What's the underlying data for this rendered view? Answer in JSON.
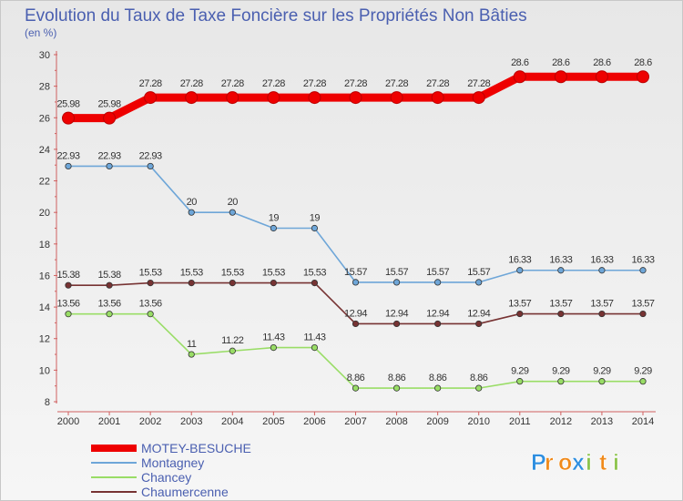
{
  "chart_data": {
    "type": "line",
    "title": "Evolution du Taux de Taxe Foncière sur les Propriétés Non Bâties",
    "ylabel": "(en %)",
    "xlabel": "",
    "ylim": [
      8,
      30
    ],
    "yticks": [
      "8",
      "10",
      "12",
      "14",
      "16",
      "18",
      "20",
      "22",
      "24",
      "26",
      "28",
      "30"
    ],
    "categories": [
      "2000",
      "2001",
      "2002",
      "2003",
      "2004",
      "2005",
      "2006",
      "2007",
      "2008",
      "2009",
      "2010",
      "2011",
      "2012",
      "2013",
      "2014"
    ],
    "series": [
      {
        "name": "MOTEY-BESUCHE",
        "color": "#ee0000",
        "values": [
          25.98,
          25.98,
          27.28,
          27.28,
          27.28,
          27.28,
          27.28,
          27.28,
          27.28,
          27.28,
          27.28,
          28.6,
          28.6,
          28.6,
          28.6
        ],
        "labels": [
          "25.98",
          "25.98",
          "27.28",
          "27.28",
          "27.28",
          "27.28",
          "27.28",
          "27.28",
          "27.28",
          "27.28",
          "27.28",
          "28.6",
          "28.6",
          "28.6",
          "28.6"
        ]
      },
      {
        "name": "Montagney",
        "color": "#6ea6d8",
        "values": [
          22.93,
          22.93,
          22.93,
          20,
          20,
          19,
          19,
          15.57,
          15.57,
          15.57,
          15.57,
          16.33,
          16.33,
          16.33,
          16.33
        ],
        "labels": [
          "22.93",
          "22.93",
          "22.93",
          "20",
          "20",
          "19",
          "19",
          "15.57",
          "15.57",
          "15.57",
          "15.57",
          "16.33",
          "16.33",
          "16.33",
          "16.33"
        ]
      },
      {
        "name": "Chancey",
        "color": "#99dd66",
        "values": [
          13.56,
          13.56,
          13.56,
          11,
          11.22,
          11.43,
          11.43,
          8.86,
          8.86,
          8.86,
          8.86,
          9.29,
          9.29,
          9.29,
          9.29
        ],
        "labels": [
          "13.56",
          "13.56",
          "13.56",
          "11",
          "11.22",
          "11.43",
          "11.43",
          "8.86",
          "8.86",
          "8.86",
          "8.86",
          "9.29",
          "9.29",
          "9.29",
          "9.29"
        ]
      },
      {
        "name": "Chaumercenne",
        "color": "#773333",
        "values": [
          15.38,
          15.38,
          15.53,
          15.53,
          15.53,
          15.53,
          15.53,
          12.94,
          12.94,
          12.94,
          12.94,
          13.57,
          13.57,
          13.57,
          13.57
        ],
        "labels": [
          "15.38",
          "15.38",
          "15.53",
          "15.53",
          "15.53",
          "15.53",
          "15.53",
          "12.94",
          "12.94",
          "12.94",
          "12.94",
          "13.57",
          "13.57",
          "13.57",
          "13.57"
        ]
      }
    ],
    "grid": false,
    "legend_position": "bottom-left"
  },
  "logo": {
    "letters": [
      "P",
      "r",
      "o",
      "x",
      "i",
      "t",
      "i"
    ],
    "colors": [
      "#2f8fe0",
      "#f08a1a",
      "#f08a1a",
      "#2f8fe0",
      "#8bc34a",
      "#f08a1a",
      "#8bc34a"
    ]
  }
}
